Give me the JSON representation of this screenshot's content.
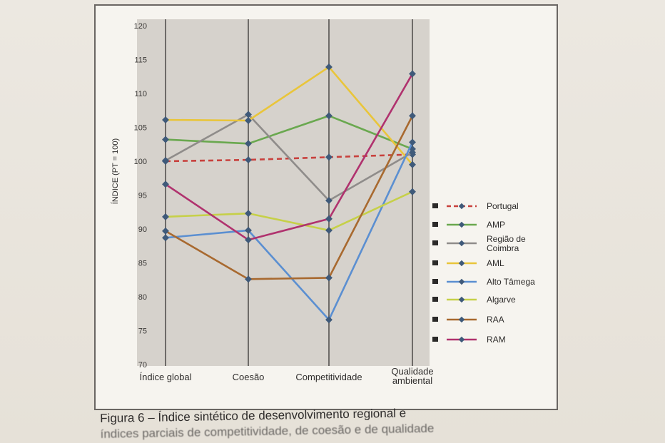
{
  "caption": {
    "line1": "Figura 6 – Índice sintético de desenvolvimento regional e",
    "line2": "índices parciais de competitividade, de coesão e de qualidade"
  },
  "chart_data": {
    "type": "line",
    "title": "",
    "xlabel": "",
    "ylabel": "ÍNDICE (PT = 100)",
    "ylim": [
      70,
      120
    ],
    "yticks": [
      70,
      75,
      80,
      85,
      90,
      95,
      100,
      105,
      110,
      115,
      120
    ],
    "grid": "vertical lines at each category",
    "legend_position": "right",
    "categories": [
      "Índice global",
      "Coesão",
      "Competitividade",
      "Qualidade ambiental"
    ],
    "series": [
      {
        "name": "Portugal",
        "color": "#c8413d",
        "dash": true,
        "values": [
          100,
          100.2,
          100.6,
          101
        ]
      },
      {
        "name": "AMP",
        "color": "#6aa84f",
        "values": [
          103.2,
          102.6,
          106.7,
          101.8
        ]
      },
      {
        "name": "Região de Coimbra",
        "color": "#8f8c8a",
        "values": [
          100.1,
          106.9,
          94.2,
          101.3
        ]
      },
      {
        "name": "AML",
        "color": "#e9c53a",
        "values": [
          106.1,
          106.0,
          113.9,
          99.5
        ]
      },
      {
        "name": "Alto Tâmega",
        "color": "#5b8fd1",
        "values": [
          88.7,
          89.8,
          76.6,
          102.8
        ]
      },
      {
        "name": "Algarve",
        "color": "#c6d048",
        "values": [
          91.8,
          92.3,
          89.8,
          95.5
        ]
      },
      {
        "name": "RAA",
        "color": "#a8692f",
        "values": [
          89.7,
          82.6,
          82.8,
          106.7
        ]
      },
      {
        "name": "RAM",
        "color": "#b0326e",
        "values": [
          96.6,
          88.4,
          91.5,
          112.9
        ]
      }
    ]
  }
}
